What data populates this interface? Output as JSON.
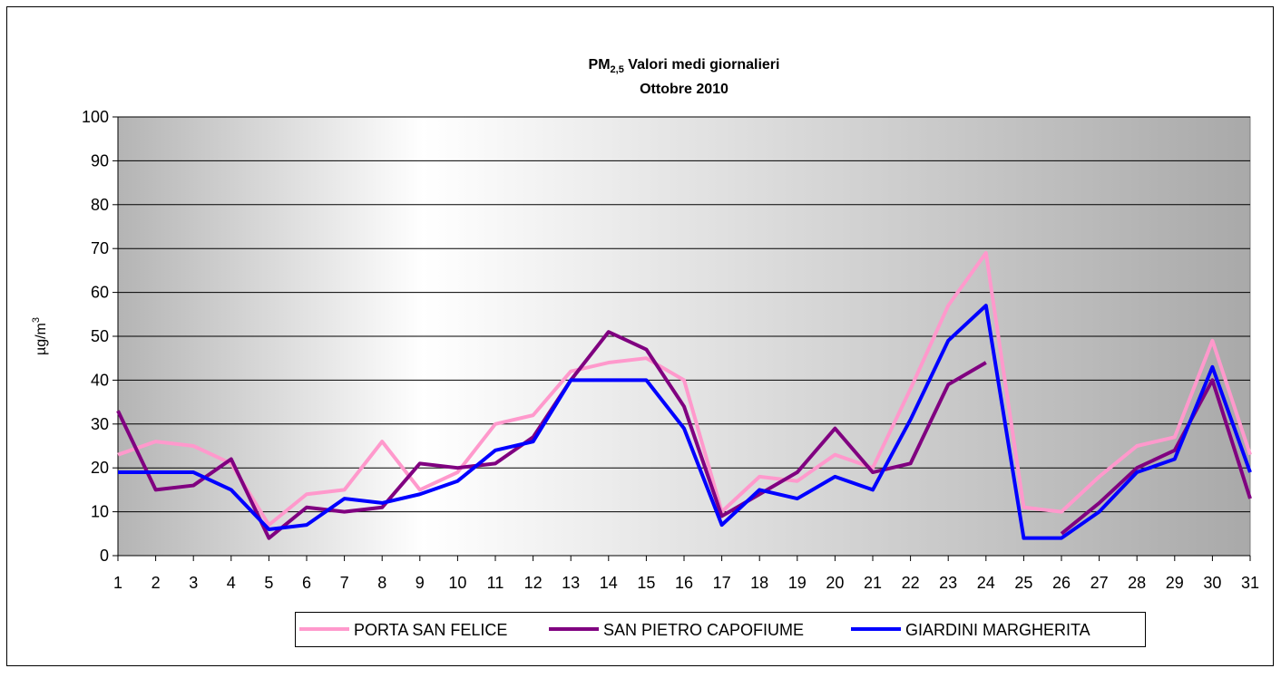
{
  "chart_data": {
    "type": "line",
    "title": {
      "main": "PM",
      "subscript": "2,5",
      "rest": " Valori medi giornalieri"
    },
    "subtitle": "Ottobre 2010",
    "ylabel": {
      "main": "µg/m",
      "superscript": "3"
    },
    "x": [
      1,
      2,
      3,
      4,
      5,
      6,
      7,
      8,
      9,
      10,
      11,
      12,
      13,
      14,
      15,
      16,
      17,
      18,
      19,
      20,
      21,
      22,
      23,
      24,
      25,
      26,
      27,
      28,
      29,
      30,
      31
    ],
    "xlim": [
      1,
      31
    ],
    "ylim": [
      0,
      100
    ],
    "yticks": [
      0,
      10,
      20,
      30,
      40,
      50,
      60,
      70,
      80,
      90,
      100
    ],
    "grid": true,
    "legend": "bottom",
    "series": [
      {
        "name": "PORTA SAN FELICE",
        "color": "#ff99cc",
        "values": [
          23,
          26,
          25,
          21,
          7,
          14,
          15,
          26,
          15,
          19,
          30,
          32,
          42,
          44,
          45,
          40,
          10,
          18,
          17,
          23,
          20,
          38,
          57,
          69,
          11,
          10,
          18,
          25,
          27,
          49,
          23
        ]
      },
      {
        "name": "SAN PIETRO CAPOFIUME",
        "color": "#800080",
        "values": [
          33,
          15,
          16,
          22,
          4,
          11,
          10,
          11,
          21,
          20,
          21,
          27,
          40,
          51,
          47,
          34,
          9,
          14,
          19,
          29,
          19,
          21,
          39,
          44,
          null,
          5,
          12,
          20,
          24,
          40,
          13
        ]
      },
      {
        "name": "GIARDINI MARGHERITA",
        "color": "#0000ff",
        "values": [
          19,
          19,
          19,
          15,
          6,
          7,
          13,
          12,
          14,
          17,
          24,
          26,
          40,
          40,
          40,
          29,
          7,
          15,
          13,
          18,
          15,
          31,
          49,
          57,
          4,
          4,
          10,
          19,
          22,
          43,
          19
        ]
      }
    ]
  }
}
